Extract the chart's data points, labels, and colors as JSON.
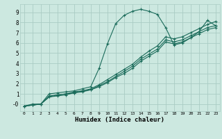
{
  "xlabel": "Humidex (Indice chaleur)",
  "bg_color": "#cce8e0",
  "grid_color": "#aaccc4",
  "line_color": "#1a6b5a",
  "xlim": [
    -0.5,
    23.5
  ],
  "ylim": [
    -0.7,
    9.8
  ],
  "xticks": [
    0,
    1,
    2,
    3,
    4,
    5,
    6,
    7,
    8,
    9,
    10,
    11,
    12,
    13,
    14,
    15,
    16,
    17,
    18,
    19,
    20,
    21,
    22,
    23
  ],
  "yticks": [
    0,
    1,
    2,
    3,
    4,
    5,
    6,
    7,
    8,
    9
  ],
  "ytick_labels": [
    "-0",
    "1",
    "2",
    "3",
    "4",
    "5",
    "6",
    "7",
    "8",
    "9"
  ],
  "line1_x": [
    0,
    1,
    2,
    3,
    4,
    5,
    6,
    7,
    8,
    9,
    10,
    11,
    12,
    13,
    14,
    15,
    16,
    17,
    18,
    19,
    20,
    21,
    22,
    23
  ],
  "line1_y": [
    -0.2,
    0.0,
    0.0,
    1.0,
    1.1,
    1.2,
    1.3,
    1.5,
    1.7,
    3.5,
    5.9,
    7.9,
    8.7,
    9.1,
    9.3,
    9.1,
    8.8,
    7.5,
    5.8,
    6.0,
    6.5,
    7.1,
    8.2,
    7.7
  ],
  "line2_x": [
    0,
    1,
    2,
    3,
    4,
    5,
    6,
    7,
    8,
    9,
    10,
    11,
    12,
    13,
    14,
    15,
    16,
    17,
    18,
    19,
    20,
    21,
    22,
    23
  ],
  "line2_y": [
    -0.2,
    -0.1,
    0.0,
    0.8,
    0.9,
    1.0,
    1.2,
    1.3,
    1.5,
    1.9,
    2.4,
    2.9,
    3.4,
    3.9,
    4.6,
    5.2,
    5.7,
    6.6,
    6.4,
    6.6,
    7.0,
    7.4,
    7.8,
    8.1
  ],
  "line3_x": [
    0,
    1,
    2,
    3,
    4,
    5,
    6,
    7,
    8,
    9,
    10,
    11,
    12,
    13,
    14,
    15,
    16,
    17,
    18,
    19,
    20,
    21,
    22,
    23
  ],
  "line3_y": [
    -0.2,
    -0.1,
    0.0,
    0.7,
    0.9,
    1.0,
    1.1,
    1.3,
    1.4,
    1.8,
    2.2,
    2.7,
    3.2,
    3.7,
    4.4,
    4.9,
    5.4,
    6.3,
    6.1,
    6.3,
    6.7,
    7.1,
    7.5,
    7.7
  ],
  "line4_x": [
    0,
    1,
    2,
    3,
    4,
    5,
    6,
    7,
    8,
    9,
    10,
    11,
    12,
    13,
    14,
    15,
    16,
    17,
    18,
    19,
    20,
    21,
    22,
    23
  ],
  "line4_y": [
    -0.2,
    -0.1,
    0.0,
    0.7,
    0.8,
    0.9,
    1.1,
    1.2,
    1.4,
    1.7,
    2.1,
    2.6,
    3.0,
    3.5,
    4.2,
    4.7,
    5.2,
    6.1,
    5.9,
    6.1,
    6.5,
    6.9,
    7.3,
    7.5
  ]
}
